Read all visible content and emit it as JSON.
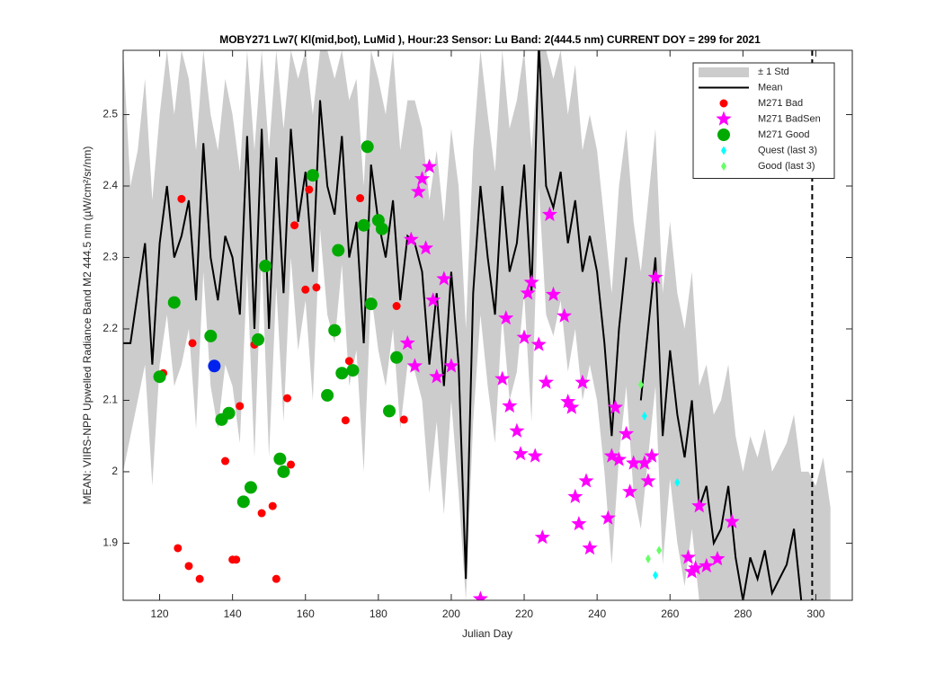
{
  "chart_data": {
    "type": "line",
    "title": "MOBY271   Lw7( Kl(mid,bot), LuMid ),   Hour:23 Sensor: Lu Band: 2(444.5 nm)   CURRENT DOY = 299 for 2021",
    "xlabel": "Julian Day",
    "ylabel": "MEAN: VIIRS-NPP Upwelled Radiance Band M2 444.5 nm (µW/cm²/sr/nm)",
    "xlim": [
      110,
      310
    ],
    "xticks": [
      120,
      140,
      160,
      180,
      200,
      220,
      240,
      260,
      280,
      300
    ],
    "ylim": [
      1.82,
      2.59
    ],
    "yticks": [
      1.9,
      2,
      2.1,
      2.2,
      2.3,
      2.4,
      2.5
    ],
    "current_doy": 299,
    "legend": "upper right",
    "x": [
      110,
      112,
      114,
      116,
      118,
      120,
      122,
      124,
      126,
      128,
      130,
      132,
      134,
      136,
      138,
      140,
      142,
      144,
      146,
      148,
      150,
      152,
      154,
      156,
      158,
      160,
      162,
      164,
      166,
      168,
      170,
      172,
      174,
      176,
      178,
      180,
      182,
      184,
      186,
      188,
      190,
      192,
      194,
      196,
      198,
      200,
      202,
      204,
      206,
      208,
      210,
      212,
      214,
      216,
      218,
      220,
      222,
      224,
      226,
      228,
      230,
      232,
      234,
      236,
      238,
      240,
      242,
      244,
      246,
      248,
      250,
      252,
      254,
      256,
      258,
      260,
      262,
      264,
      266,
      268,
      270,
      272,
      274,
      276,
      278,
      280,
      282,
      284,
      286,
      288,
      290,
      292,
      294,
      296,
      298,
      300,
      302,
      304
    ],
    "series": [
      {
        "name": "± 1 Std",
        "marker": "band",
        "color": "#cccccc",
        "upper": [
          2.59,
          2.4,
          2.45,
          2.55,
          2.38,
          2.5,
          2.59,
          2.5,
          2.59,
          2.55,
          2.45,
          2.59,
          2.5,
          2.45,
          2.55,
          2.5,
          2.42,
          2.59,
          2.45,
          2.59,
          2.45,
          2.59,
          2.48,
          2.59,
          2.55,
          2.59,
          2.5,
          2.59,
          2.59,
          2.55,
          2.59,
          2.52,
          2.55,
          2.4,
          2.59,
          2.55,
          2.5,
          2.59,
          2.45,
          2.52,
          2.52,
          2.48,
          2.38,
          2.45,
          2.35,
          2.48,
          2.4,
          2.2,
          2.45,
          2.59,
          2.5,
          2.42,
          2.59,
          2.48,
          2.52,
          2.59,
          2.45,
          2.59,
          2.59,
          2.55,
          2.59,
          2.5,
          2.57,
          2.45,
          2.5,
          2.45,
          2.35,
          2.25,
          2.4,
          2.48,
          2.35,
          2.28,
          2.38,
          2.48,
          2.25,
          2.35,
          2.25,
          2.2,
          2.28,
          2.12,
          2.15,
          2.08,
          2.1,
          2.15,
          2.05,
          2.0,
          2.05,
          2.02,
          2.06,
          2.0,
          2.02,
          2.04,
          2.08,
          2.0,
          2.0,
          1.98,
          2.02,
          1.95
        ],
        "lower": [
          2.0,
          2.05,
          2.1,
          2.15,
          1.98,
          2.15,
          2.22,
          2.12,
          2.15,
          2.2,
          2.06,
          2.28,
          2.12,
          2.06,
          2.15,
          2.12,
          2.04,
          2.28,
          2.02,
          2.3,
          2.02,
          2.26,
          2.07,
          2.3,
          2.17,
          2.24,
          2.1,
          2.34,
          2.22,
          2.18,
          2.29,
          2.12,
          2.17,
          2.0,
          2.25,
          2.17,
          2.12,
          2.2,
          2.06,
          2.15,
          2.14,
          2.1,
          1.97,
          2.07,
          1.94,
          2.1,
          1.97,
          1.82,
          2.07,
          2.22,
          2.12,
          2.04,
          2.22,
          2.1,
          2.14,
          2.25,
          2.07,
          2.4,
          2.22,
          2.19,
          2.24,
          2.14,
          2.2,
          2.1,
          2.15,
          2.1,
          2.0,
          1.87,
          2.02,
          2.12,
          1.97,
          1.92,
          2.02,
          2.12,
          1.87,
          1.99,
          1.9,
          1.84,
          1.92,
          1.82,
          1.82,
          1.82,
          1.82,
          1.82,
          1.82,
          1.82,
          1.82,
          1.82,
          1.82,
          1.82,
          1.82,
          1.82,
          1.82,
          1.82,
          1.82,
          1.82,
          1.82,
          1.82
        ]
      },
      {
        "name": "Mean",
        "marker": "line",
        "color": "#000000",
        "values": [
          2.18,
          2.18,
          2.25,
          2.32,
          2.15,
          2.32,
          2.4,
          2.3,
          2.33,
          2.38,
          2.24,
          2.46,
          2.3,
          2.24,
          2.33,
          2.3,
          2.22,
          2.47,
          2.2,
          2.48,
          2.2,
          2.44,
          2.25,
          2.48,
          2.35,
          2.42,
          2.28,
          2.52,
          2.4,
          2.36,
          2.47,
          2.3,
          2.35,
          2.18,
          2.43,
          2.35,
          2.3,
          2.38,
          2.24,
          2.33,
          2.32,
          2.28,
          2.15,
          2.25,
          2.12,
          2.28,
          2.15,
          1.85,
          2.25,
          2.4,
          2.3,
          2.22,
          2.4,
          2.28,
          2.32,
          2.43,
          2.25,
          2.6,
          2.4,
          2.37,
          2.42,
          2.32,
          2.38,
          2.28,
          2.33,
          2.28,
          2.18,
          2.05,
          2.2,
          2.3,
          null,
          2.1,
          2.2,
          2.3,
          2.05,
          2.17,
          2.08,
          2.02,
          2.1,
          1.95,
          1.98,
          1.9,
          1.92,
          1.98,
          1.88,
          1.82,
          1.88,
          1.85,
          1.89,
          1.83,
          1.85,
          1.87,
          1.92,
          1.82,
          null,
          null,
          null,
          null
        ]
      },
      {
        "name": "M271 Bad",
        "marker": "dot",
        "color": "#ff0000",
        "x": [
          121,
          126,
          129,
          125,
          128,
          131,
          138,
          140,
          141,
          142,
          146,
          148,
          151,
          152,
          155,
          156,
          157,
          160,
          161,
          163,
          171,
          172,
          175,
          185,
          187
        ],
        "values": [
          2.138,
          2.382,
          2.18,
          1.893,
          1.868,
          1.85,
          2.015,
          1.877,
          1.877,
          2.092,
          2.178,
          1.942,
          1.952,
          1.85,
          2.103,
          2.01,
          2.345,
          2.255,
          2.395,
          2.258,
          2.072,
          2.155,
          2.383,
          2.232,
          2.073
        ]
      },
      {
        "name": "M271 BadSen",
        "marker": "star",
        "color": "#ff00ff",
        "x": [
          188,
          189,
          190,
          191,
          192,
          193,
          194,
          195,
          196,
          198,
          200,
          208,
          214,
          215,
          216,
          218,
          219,
          220,
          221,
          222,
          223,
          224,
          225,
          226,
          227,
          228,
          231,
          232,
          233,
          234,
          235,
          236,
          237,
          238,
          243,
          244,
          245,
          246,
          248,
          249,
          250,
          253,
          254,
          255,
          256,
          265,
          266,
          267,
          268,
          270,
          273,
          277
        ],
        "values": [
          2.18,
          2.325,
          2.148,
          2.392,
          2.41,
          2.313,
          2.427,
          2.24,
          2.133,
          2.27,
          2.148,
          1.822,
          2.13,
          2.215,
          2.092,
          2.057,
          2.025,
          2.188,
          2.25,
          2.265,
          2.022,
          2.178,
          1.908,
          2.125,
          2.36,
          2.248,
          2.218,
          2.098,
          2.09,
          1.965,
          1.927,
          2.125,
          1.987,
          1.893,
          1.935,
          2.022,
          2.09,
          2.017,
          2.053,
          1.972,
          2.012,
          2.012,
          1.987,
          2.022,
          2.272,
          1.88,
          1.86,
          1.865,
          1.952,
          1.868,
          1.878,
          1.93
        ]
      },
      {
        "name": "M271 Good",
        "marker": "big-dot",
        "color": "#00aa00",
        "x": [
          120,
          124,
          134,
          137,
          139,
          143,
          145,
          147,
          149,
          153,
          154,
          162,
          166,
          168,
          169,
          170,
          173,
          176,
          177,
          178,
          180,
          181,
          183,
          185
        ],
        "values": [
          2.133,
          2.237,
          2.19,
          2.073,
          2.082,
          1.958,
          1.978,
          2.185,
          2.288,
          2.018,
          2.0,
          2.415,
          2.107,
          2.198,
          2.31,
          2.138,
          2.142,
          2.345,
          2.455,
          2.235,
          2.352,
          2.34,
          2.085,
          2.16
        ]
      },
      {
        "name": "Quest (last 3)",
        "marker": "diamond",
        "color": "#00ffff",
        "x": [
          253,
          256,
          262
        ],
        "values": [
          2.078,
          1.855,
          1.985
        ]
      },
      {
        "name": "Good (last 3)",
        "marker": "diamond",
        "color": "#66ff66",
        "x": [
          252,
          254,
          257
        ],
        "values": [
          2.122,
          1.878,
          1.89
        ]
      },
      {
        "marker": "big-dot",
        "color": "#0022ee",
        "x": [
          135
        ],
        "values": [
          2.148
        ]
      }
    ]
  }
}
